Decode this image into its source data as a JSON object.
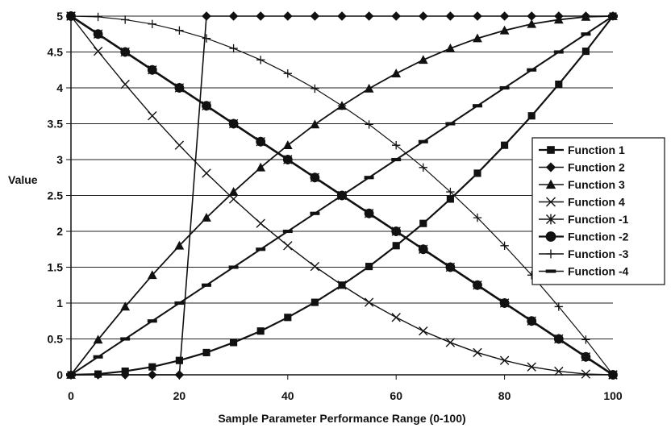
{
  "chart_data": {
    "type": "line",
    "title": "",
    "xlabel": "Sample Parameter Performance Range (0-100)",
    "ylabel": "Value",
    "xlim": [
      0,
      100
    ],
    "ylim": [
      0,
      5
    ],
    "x_ticks": [
      0,
      20,
      40,
      60,
      80,
      100
    ],
    "y_ticks": [
      0,
      0.5,
      1,
      1.5,
      2,
      2.5,
      3,
      3.5,
      4,
      4.5,
      5
    ],
    "grid": "horizontal",
    "legend_position": "right",
    "x": [
      0,
      5,
      10,
      15,
      20,
      25,
      30,
      35,
      40,
      45,
      50,
      55,
      60,
      65,
      70,
      75,
      80,
      85,
      90,
      95,
      100
    ],
    "series": [
      {
        "name": "Function 1",
        "marker": "square",
        "values": [
          0.0,
          0.01,
          0.05,
          0.11,
          0.2,
          0.31,
          0.45,
          0.61,
          0.8,
          1.01,
          1.25,
          1.51,
          1.8,
          2.11,
          2.45,
          2.81,
          3.2,
          3.61,
          4.05,
          4.51,
          5.0
        ]
      },
      {
        "name": "Function 2",
        "marker": "diamond",
        "values": [
          0.0,
          0.0,
          0.0,
          0.0,
          0.0,
          5.0,
          5.0,
          5.0,
          5.0,
          5.0,
          5.0,
          5.0,
          5.0,
          5.0,
          5.0,
          5.0,
          5.0,
          5.0,
          5.0,
          5.0,
          5.0
        ]
      },
      {
        "name": "Function 3",
        "marker": "triangle",
        "values": [
          0.0,
          0.49,
          0.95,
          1.39,
          1.8,
          2.19,
          2.55,
          2.89,
          3.2,
          3.49,
          3.75,
          3.99,
          4.2,
          4.39,
          4.55,
          4.69,
          4.8,
          4.89,
          4.95,
          4.99,
          5.0
        ]
      },
      {
        "name": "Function 4",
        "marker": "x",
        "values": [
          5.0,
          4.51,
          4.05,
          3.61,
          3.2,
          2.81,
          2.45,
          2.11,
          1.8,
          1.51,
          1.25,
          1.01,
          0.8,
          0.61,
          0.45,
          0.31,
          0.2,
          0.11,
          0.05,
          0.01,
          0.0
        ]
      },
      {
        "name": "Function -1",
        "marker": "star",
        "values": [
          5.0,
          4.75,
          4.5,
          4.25,
          4.0,
          3.75,
          3.5,
          3.25,
          3.0,
          2.75,
          2.5,
          2.25,
          2.0,
          1.75,
          1.5,
          1.25,
          1.0,
          0.75,
          0.5,
          0.25,
          0.0
        ]
      },
      {
        "name": "Function -2",
        "marker": "circle",
        "values": [
          5.0,
          4.75,
          4.5,
          4.25,
          4.0,
          3.75,
          3.5,
          3.25,
          3.0,
          2.75,
          2.5,
          2.25,
          2.0,
          1.75,
          1.5,
          1.25,
          1.0,
          0.75,
          0.5,
          0.25,
          0.0
        ]
      },
      {
        "name": "Function -3",
        "marker": "plus",
        "values": [
          5.0,
          4.99,
          4.95,
          4.89,
          4.8,
          4.69,
          4.55,
          4.39,
          4.2,
          3.99,
          3.75,
          3.49,
          3.2,
          2.89,
          2.55,
          2.19,
          1.8,
          1.39,
          0.95,
          0.49,
          0.0
        ]
      },
      {
        "name": "Function -4",
        "marker": "dash",
        "values": [
          0.0,
          0.25,
          0.5,
          0.75,
          1.0,
          1.25,
          1.5,
          1.75,
          2.0,
          2.25,
          2.5,
          2.75,
          3.0,
          3.25,
          3.5,
          3.75,
          4.0,
          4.25,
          4.5,
          4.75,
          5.0
        ]
      }
    ]
  }
}
